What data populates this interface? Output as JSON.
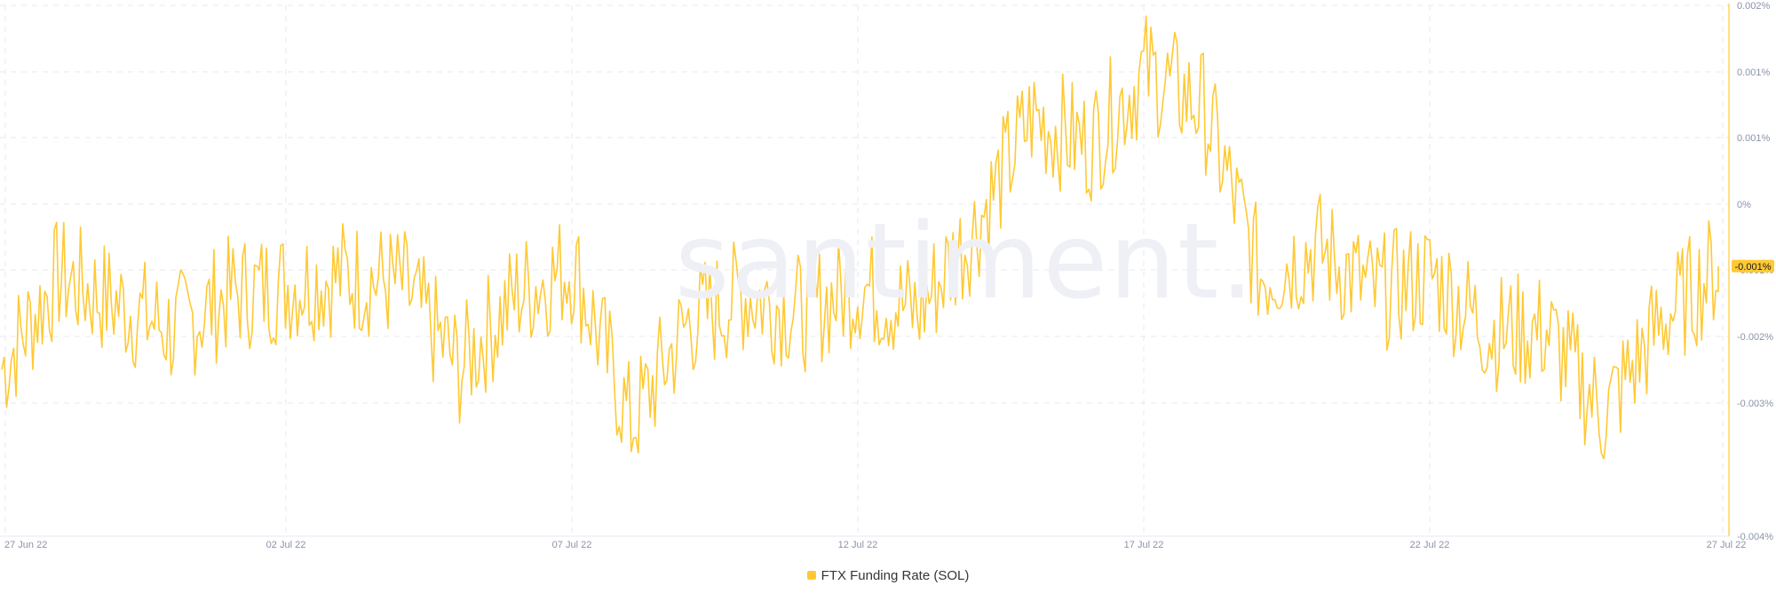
{
  "colors": {
    "line": "#FFC933",
    "grid": "#e6e9f0",
    "axis_text": "#8a93a8",
    "watermark": "#eef0f6",
    "current_value_bg": "#FFC933"
  },
  "watermark_text": "santiment.",
  "chart_data": {
    "type": "line",
    "title": "",
    "xlabel": "",
    "ylabel": "",
    "x_tick_labels": [
      "27 Jun 22",
      "02 Jul 22",
      "07 Jul 22",
      "12 Jul 22",
      "17 Jul 22",
      "22 Jul 22",
      "27 Jul 22"
    ],
    "y_tick_labels": [
      "0.002%",
      "0.001%",
      "0.001%",
      "0%",
      "-0.001%",
      "-0.002%",
      "-0.003%",
      "-0.004%"
    ],
    "ylim": [
      -0.0038,
      0.0019
    ],
    "grid": true,
    "legend_position": "bottom-center",
    "current_value_label": "-0.001%",
    "series": [
      {
        "name": "FTX Funding Rate (SOL)",
        "x": [
          "2022-06-27",
          "2022-06-28",
          "2022-06-29",
          "2022-06-30",
          "2022-07-01",
          "2022-07-02",
          "2022-07-03",
          "2022-07-04",
          "2022-07-05",
          "2022-07-06",
          "2022-07-07",
          "2022-07-08",
          "2022-07-09",
          "2022-07-10",
          "2022-07-11",
          "2022-07-12",
          "2022-07-13",
          "2022-07-14",
          "2022-07-15",
          "2022-07-16",
          "2022-07-17",
          "2022-07-18",
          "2022-07-19",
          "2022-07-20",
          "2022-07-21",
          "2022-07-22",
          "2022-07-23",
          "2022-07-24",
          "2022-07-25",
          "2022-07-26",
          "2022-07-27"
        ],
        "values": [
          -0.002,
          -0.001,
          -0.0013,
          -0.0016,
          -0.0012,
          -0.0011,
          -0.001,
          -0.0011,
          -0.002,
          -0.0012,
          -0.0009,
          -0.0026,
          -0.0015,
          -0.0012,
          -0.0014,
          -0.0011,
          -0.0014,
          -0.0005,
          0.0007,
          0.0004,
          0.0012,
          0.0008,
          -0.001,
          -0.0007,
          -0.0012,
          -0.001,
          -0.0016,
          -0.0016,
          -0.0025,
          -0.0015,
          -0.0009
        ]
      }
    ]
  }
}
